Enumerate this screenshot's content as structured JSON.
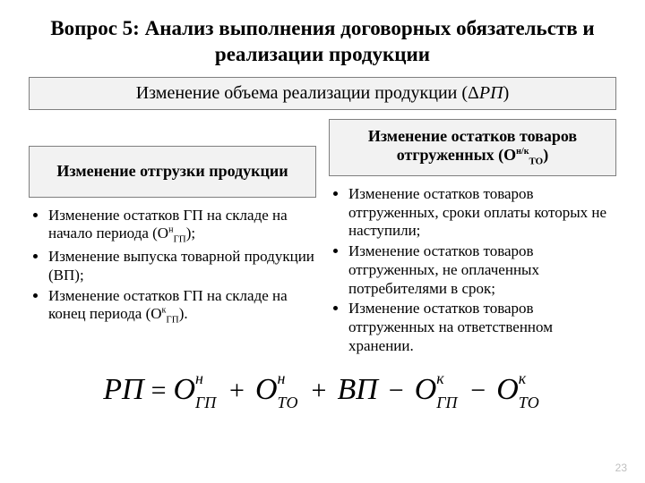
{
  "title": "Вопрос 5: Анализ выполнения договорных обязательств и реализации продукции",
  "main_banner_prefix": "Изменение объема реализации продукции (",
  "main_banner_delta": "Δ",
  "main_banner_var": "РП",
  "main_banner_suffix": ")",
  "left": {
    "heading": "Изменение отгрузки продукции",
    "b1_a": "Изменение остатков ГП на складе на начало периода (О",
    "b1_sup": "н",
    "b1_sub": "ГП",
    "b1_b": ");",
    "b2": "Изменение выпуска товарной продукции (ВП);",
    "b3_a": "Изменение остатков ГП на складе на конец периода (О",
    "b3_sup": "к",
    "b3_sub": "ГП",
    "b3_b": ")."
  },
  "right": {
    "heading_a": "Изменение остатков товаров отгруженных (О",
    "heading_sup": "н/к",
    "heading_sub": "ТО",
    "heading_b": ")",
    "b1": "Изменение остатков товаров отгруженных, сроки оплаты которых не наступили;",
    "b2": "Изменение остатков товаров отгруженных, не оплаченных потребителями в срок;",
    "b3": "Изменение остатков товаров отгруженных на ответственном хранении."
  },
  "formula": {
    "lhs": "РП",
    "t1": {
      "base": "О",
      "sup": "н",
      "sub": "ГП"
    },
    "t2": {
      "base": "О",
      "sup": "н",
      "sub": "ТО"
    },
    "t3": {
      "base": "ВП"
    },
    "t4": {
      "base": "О",
      "sup": "к",
      "sub": "ГП"
    },
    "t5": {
      "base": "О",
      "sup": "к",
      "sub": "ТО"
    }
  },
  "pagenum": "23",
  "colors": {
    "banner_bg": "#f2f2f2",
    "banner_border": "#7f7f7f",
    "text": "#000000",
    "pagenum": "#bfbfbf"
  }
}
